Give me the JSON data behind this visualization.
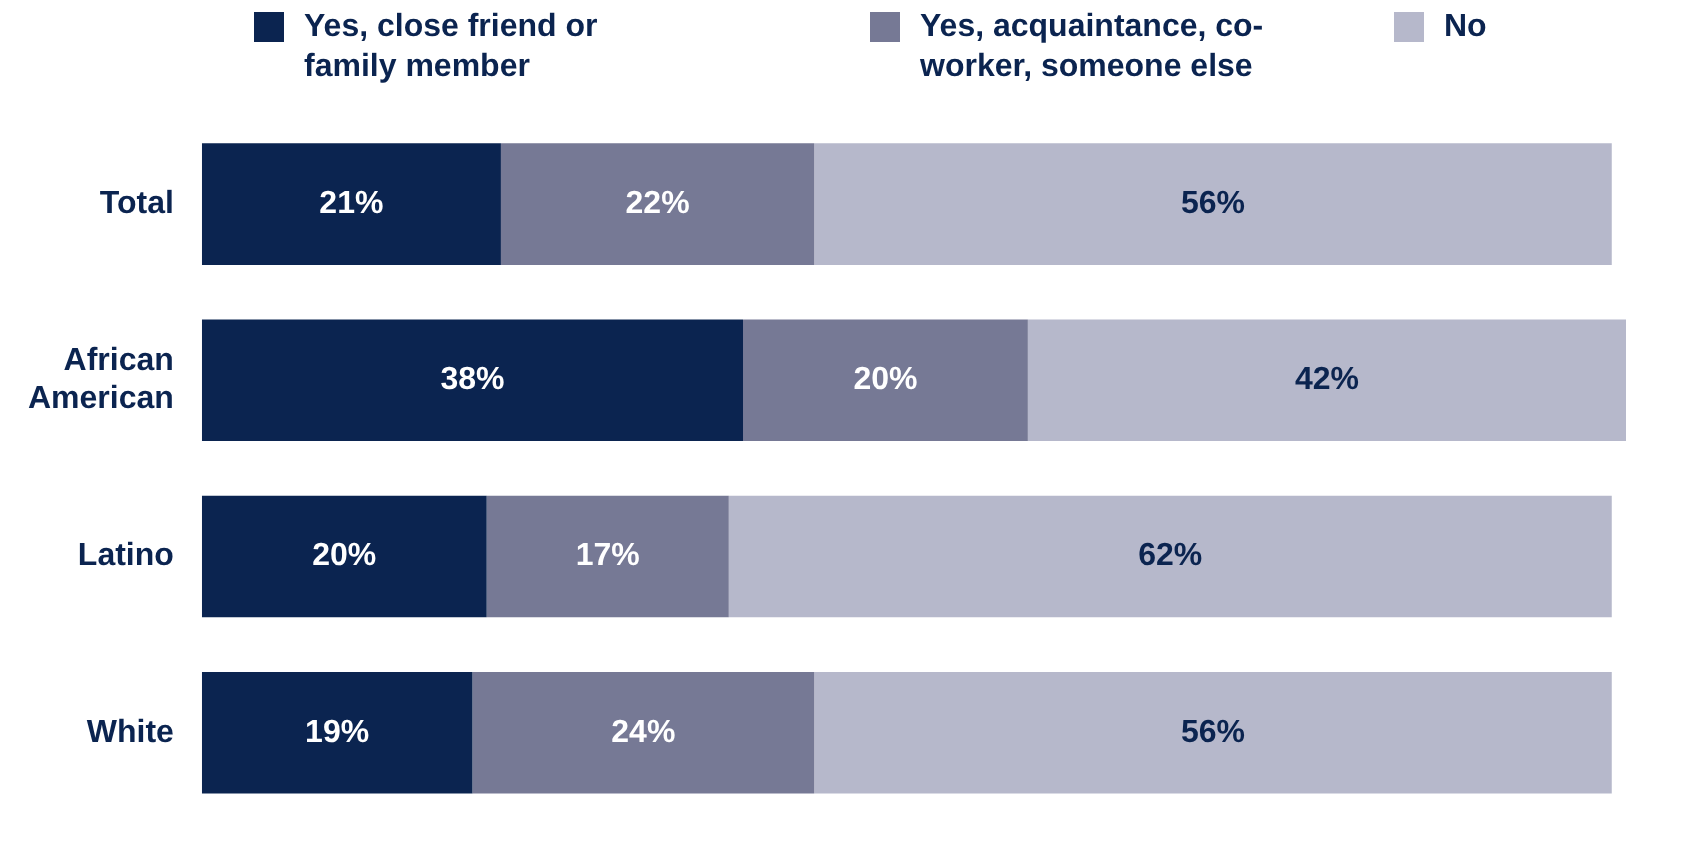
{
  "chart_data": {
    "type": "bar",
    "orientation": "horizontal",
    "stacked": true,
    "categories": [
      "Total",
      "African American",
      "Latino",
      "White"
    ],
    "series": [
      {
        "name": "Yes, close friend or family member",
        "color": "#0b2450",
        "values": [
          21,
          38,
          20,
          19
        ],
        "value_labels": [
          "21%",
          "38%",
          "20%",
          "19%"
        ]
      },
      {
        "name": "Yes, acquaintance, co-worker, someone else",
        "color": "#767995",
        "values": [
          22,
          20,
          17,
          24
        ],
        "value_labels": [
          "22%",
          "20%",
          "17%",
          "24%"
        ]
      },
      {
        "name": "No",
        "color": "#b6b8cb",
        "values": [
          56,
          42,
          62,
          56
        ],
        "value_labels": [
          "56%",
          "42%",
          "62%",
          "56%"
        ]
      }
    ],
    "xlim": [
      0,
      100
    ],
    "tick_labels": "y",
    "legend": "top"
  }
}
